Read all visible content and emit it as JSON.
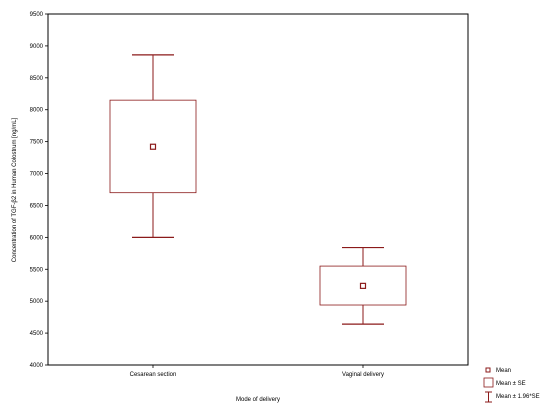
{
  "chart_data": {
    "type": "boxplot",
    "title": "",
    "xlabel": "Mode of delivery",
    "ylabel": "Concentration of TGF-β2 in Human Colostrum [ng/mL]",
    "ylim": [
      4000,
      9500
    ],
    "yticks": [
      4000,
      4500,
      5000,
      5500,
      6000,
      6500,
      7000,
      7500,
      8000,
      8500,
      9000,
      9500
    ],
    "categories": [
      "Cesarean section",
      "Vaginal delivery"
    ],
    "series": [
      {
        "category": "Cesarean section",
        "mean": 7420,
        "se_low": 6700,
        "se_high": 8150,
        "ci_low": 6000,
        "ci_high": 8860
      },
      {
        "category": "Vaginal delivery",
        "mean": 5240,
        "se_low": 4940,
        "se_high": 5550,
        "ci_low": 4640,
        "ci_high": 5840
      }
    ],
    "legend": {
      "placement": "bottom-right",
      "items": [
        "Mean",
        "Mean ± SE",
        "Mean ± 1.96*SE"
      ]
    },
    "grid": false,
    "colors": {
      "series": "#8b1a1a",
      "frame": "#000000"
    }
  }
}
